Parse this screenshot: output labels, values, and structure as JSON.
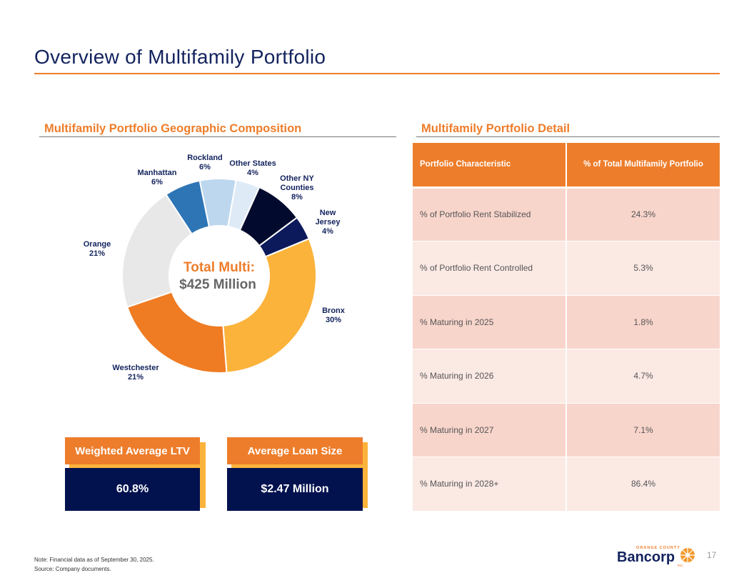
{
  "title": "Overview of Multifamily Portfolio",
  "left_heading": "Multifamily Portfolio Geographic Composition",
  "right_heading": "Multifamily Portfolio Detail",
  "chart_data": {
    "type": "pie",
    "donut": true,
    "center_label": [
      "Total Multi:",
      "$425 Million"
    ],
    "categories": [
      "Other States",
      "Other NY Counties",
      "New Jersey",
      "Bronx",
      "Westchester",
      "Orange",
      "Manhattan",
      "Rockland"
    ],
    "labels": [
      "Other States",
      "Other NY Counties",
      "New Jersey",
      "Bronx",
      "Westchester",
      "Orange",
      "Manhattan",
      "Rockland"
    ],
    "value_labels": [
      "4%",
      "8%",
      "4%",
      "30%",
      "21%",
      "21%",
      "6%",
      "6%"
    ],
    "values": [
      4,
      8,
      4,
      30,
      21,
      21,
      6,
      6
    ],
    "colors": [
      "#deebf7",
      "#020b2e",
      "#0c1a5c",
      "#fbb33b",
      "#ef7b22",
      "#e8e8e8",
      "#2e75b6",
      "#bdd7ee"
    ]
  },
  "kpis": [
    {
      "label": "Weighted Average LTV",
      "value": "60.8%"
    },
    {
      "label": "Average Loan Size",
      "value": "$2.47 Million"
    }
  ],
  "table": {
    "headers": [
      "Portfolio Characteristic",
      "% of Total Multifamily Portfolio"
    ],
    "rows": [
      [
        "% of Portfolio Rent Stabilized",
        "24.3%"
      ],
      [
        "% of Portfolio Rent Controlled",
        "5.3%"
      ],
      [
        "% Maturing in 2025",
        "1.8%"
      ],
      [
        "% Maturing in 2026",
        "4.7%"
      ],
      [
        "% Maturing in 2027",
        "7.1%"
      ],
      [
        "% Maturing in 2028+",
        "86.4%"
      ]
    ]
  },
  "footer": {
    "note": "Note: Financial data as of September 30, 2025.",
    "source": "Source: Company documents.",
    "page": "17",
    "logo": {
      "top": "ORANGE COUNTY",
      "name": "Bancorp",
      "sub": "INC"
    }
  },
  "colors": {
    "accent": "#ee7d2b",
    "navy": "#02124f",
    "gold": "#fbb33b"
  }
}
